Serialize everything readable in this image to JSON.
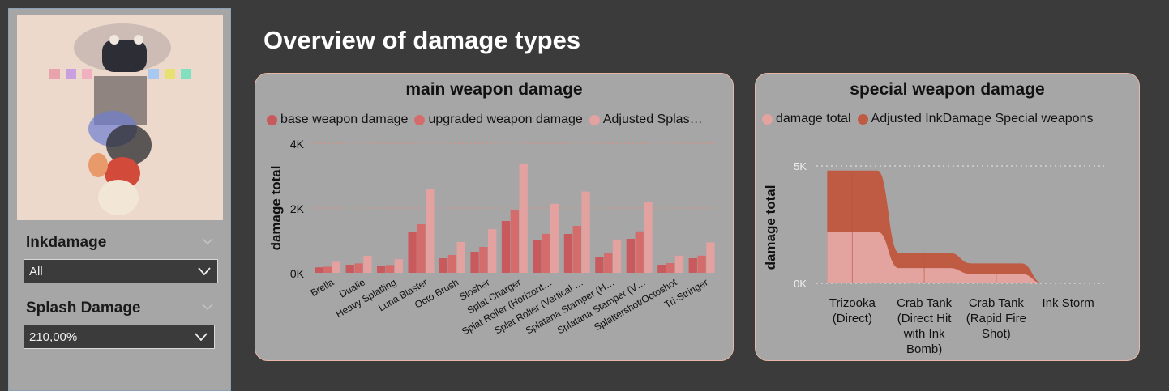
{
  "page": {
    "title": "Overview of damage types"
  },
  "slicers": [
    {
      "title": "Inkdamage",
      "value": "All"
    },
    {
      "title": "Splash Damage",
      "value": "210,00%"
    }
  ],
  "colors": {
    "base": "#c85a5e",
    "upgraded": "#d46c6c",
    "adjusted": "#e3a1a0",
    "special_total": "#e3a39e",
    "special_adjusted": "#bf5b43"
  },
  "main_chart": {
    "title": "main weapon damage",
    "legend": [
      "base weapon damage",
      "upgraded weapon damage",
      "Adjusted Splas…"
    ]
  },
  "special_chart": {
    "title": "special weapon damage",
    "legend": [
      "damage total",
      "Adjusted InkDamage Special weapons"
    ]
  },
  "chart_data": [
    {
      "type": "bar",
      "title": "main weapon damage",
      "ylabel": "damage total",
      "ylim": [
        0,
        4000
      ],
      "yticks": [
        "0K",
        "2K",
        "4K"
      ],
      "categories": [
        "Brella",
        "Dualie",
        "Heavy Splatling",
        "Luna Blaster",
        "Octo Brush",
        "Slosher",
        "Splat Charger",
        "Splat Roller (Horizont…",
        "Splat Roller (Vertical …",
        "Splatana Stamper (H…",
        "Splatana Stamper (V…",
        "Splattershot/Octoshot",
        "Tri-Stringer"
      ],
      "series": [
        {
          "name": "base weapon damage",
          "values": [
            170,
            250,
            200,
            1250,
            450,
            650,
            1600,
            1000,
            1200,
            500,
            1050,
            250,
            450
          ]
        },
        {
          "name": "upgraded weapon damage",
          "values": [
            190,
            290,
            240,
            1500,
            550,
            800,
            1950,
            1200,
            1450,
            600,
            1280,
            300,
            530
          ]
        },
        {
          "name": "Adjusted Splas…",
          "values": [
            340,
            530,
            420,
            2600,
            950,
            1350,
            3350,
            2130,
            2510,
            1030,
            2200,
            530,
            940
          ]
        }
      ],
      "legend_position": "top-left"
    },
    {
      "type": "area",
      "title": "special weapon damage",
      "ylabel": "damage total",
      "ylim": [
        0,
        5000
      ],
      "yticks": [
        "0K",
        "5K"
      ],
      "categories": [
        "Trizooka (Direct)",
        "Crab Tank (Direct Hit with Ink Bomb)",
        "Crab Tank (Rapid Fire Shot)",
        "Ink Storm"
      ],
      "series": [
        {
          "name": "damage total",
          "values": [
            2200,
            650,
            400,
            0
          ]
        },
        {
          "name": "Adjusted InkDamage Special weapons",
          "values": [
            4800,
            1300,
            850,
            0
          ]
        }
      ],
      "legend_position": "top-left"
    }
  ]
}
